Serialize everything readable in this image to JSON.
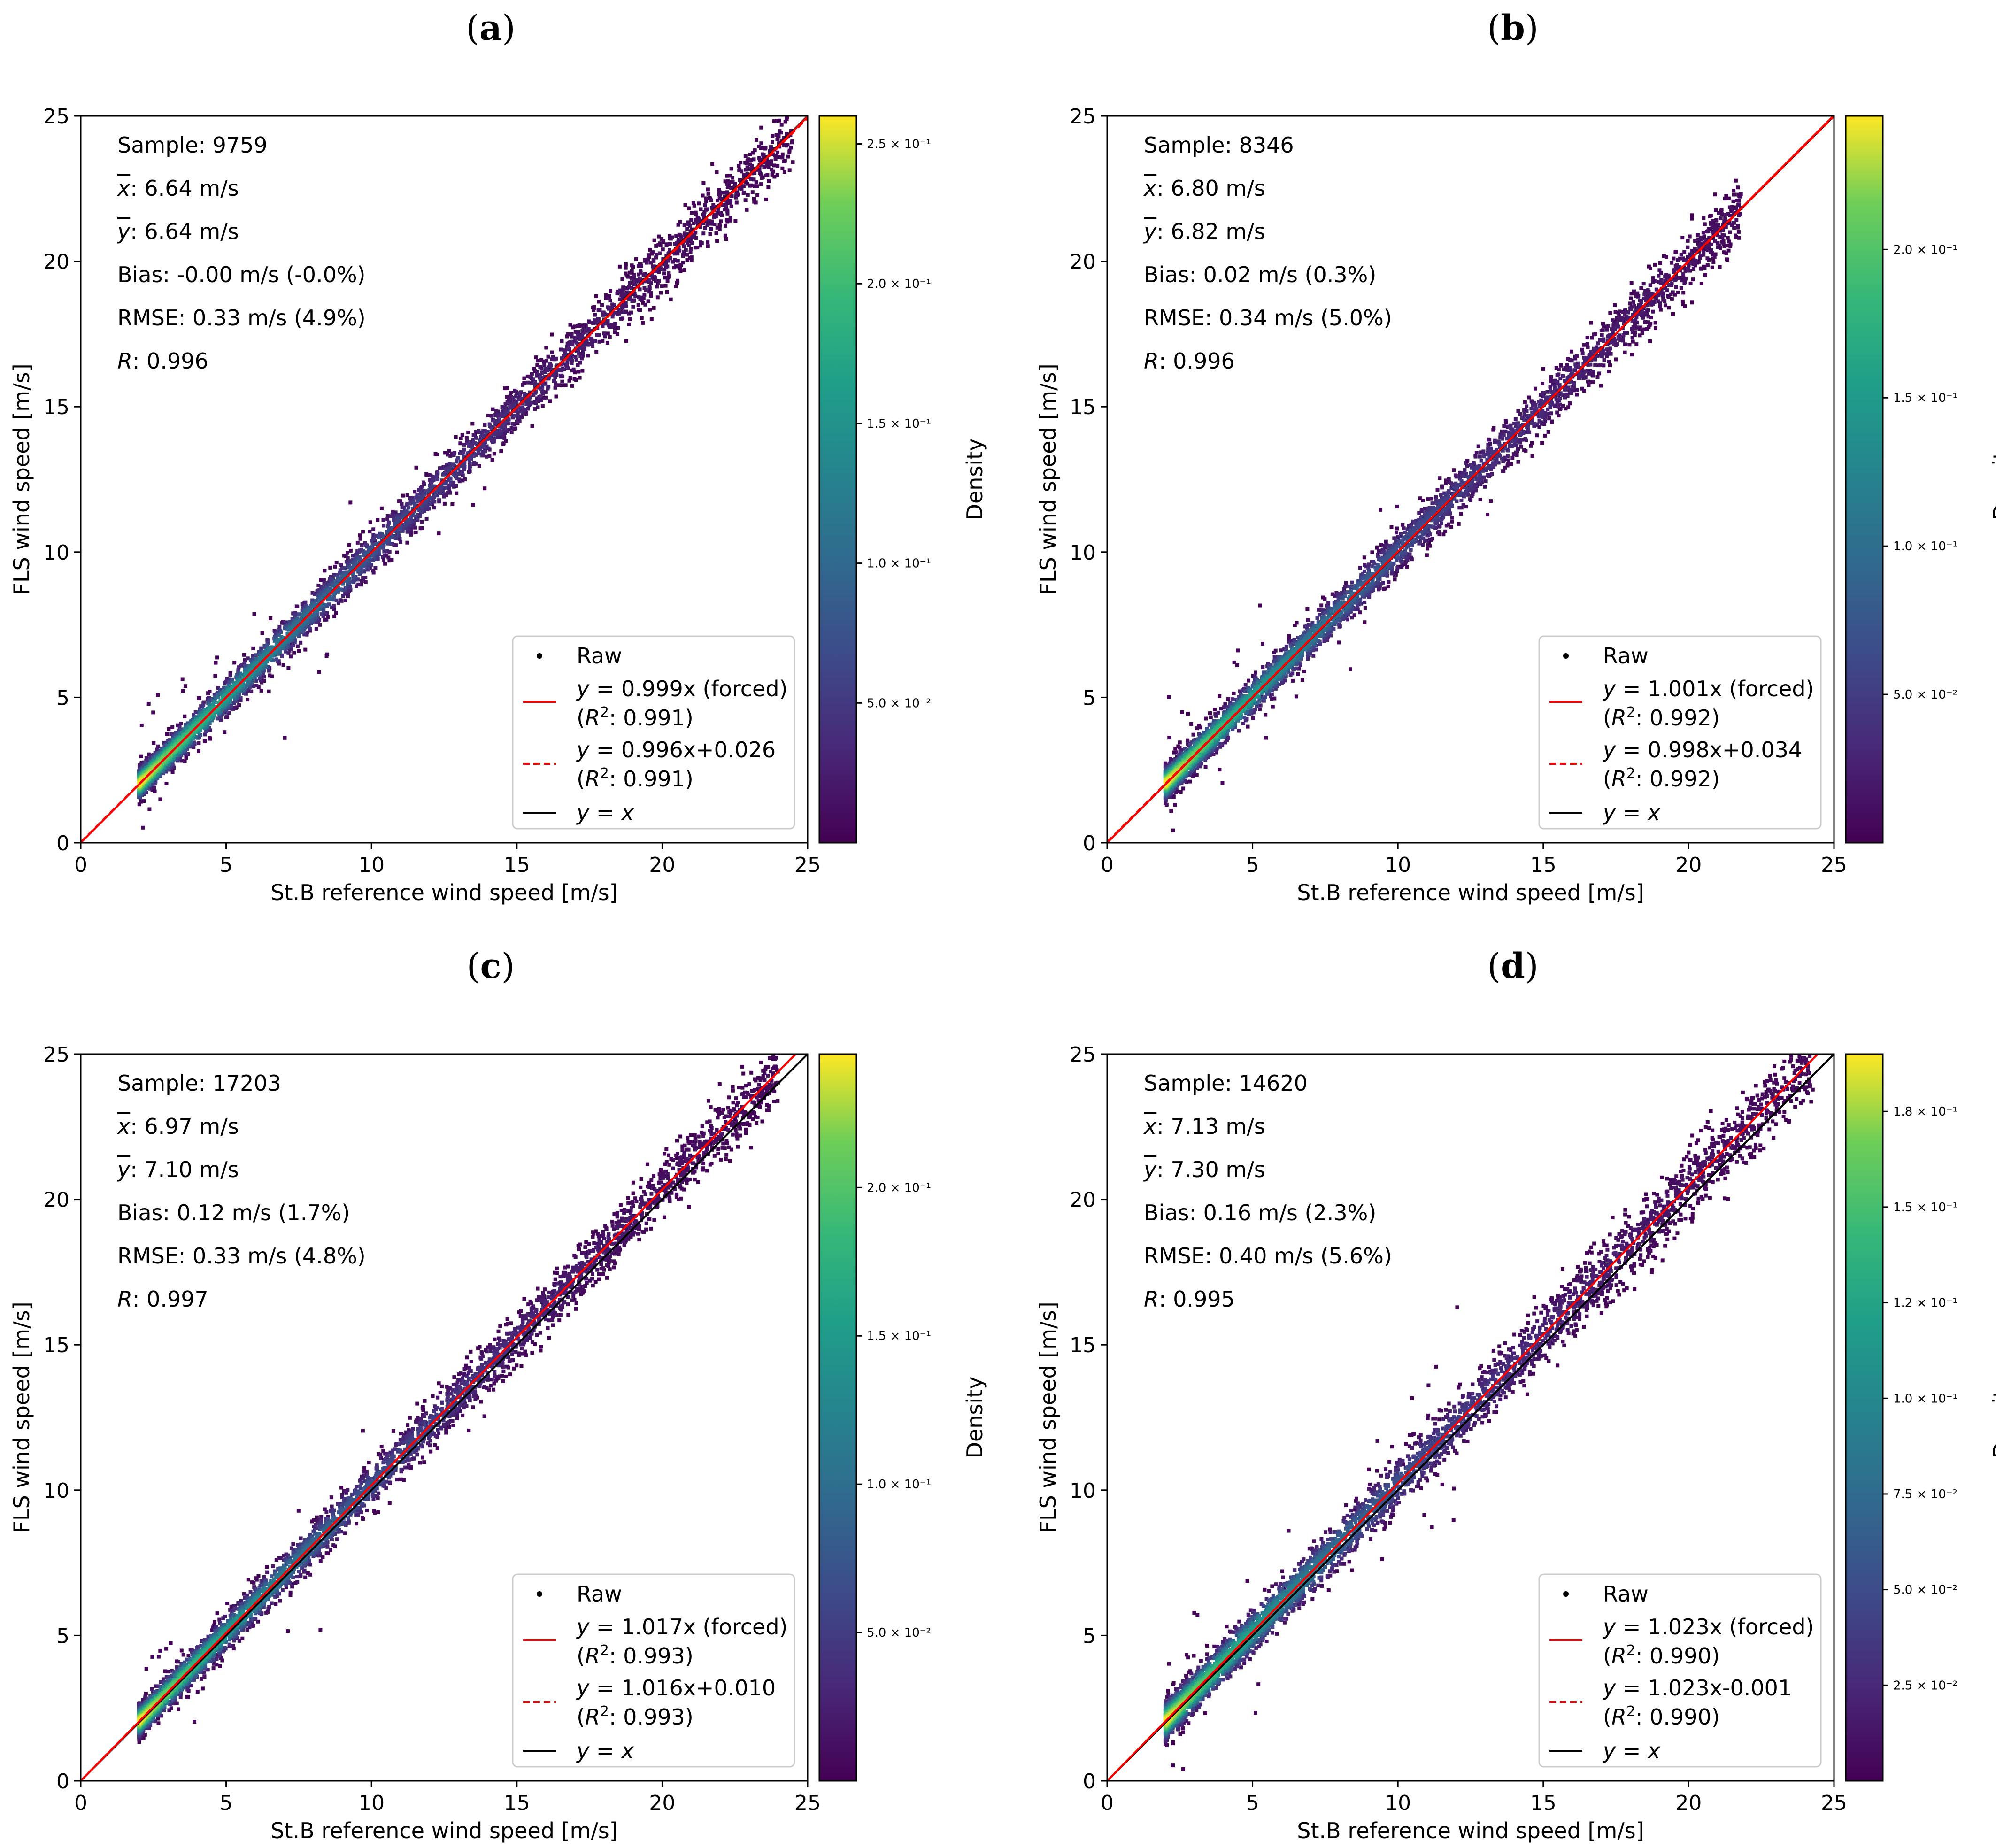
{
  "figure": {
    "panels": [
      "a",
      "b",
      "c",
      "d"
    ]
  },
  "common": {
    "x_label": "St.B reference wind speed [m/s]",
    "y_label": "FLS wind speed [m/s]",
    "colorbar_label": "Density",
    "legend_raw": "Raw",
    "legend_identity": "y = x",
    "stat_labels": {
      "sample": "Sample: ",
      "xmean": ": ",
      "ymean": ": ",
      "bias": "Bias: ",
      "rmse": "RMSE: ",
      "r": ": "
    }
  },
  "chart_data": [
    {
      "panel": "(a)",
      "type": "scatter",
      "title": "(a)",
      "xlabel": "St.B reference wind speed [m/s]",
      "ylabel": "FLS wind speed [m/s]",
      "xlim": [
        0,
        25
      ],
      "ylim": [
        0,
        25
      ],
      "xticks": [
        0,
        5,
        10,
        15,
        20,
        25
      ],
      "yticks": [
        0,
        5,
        10,
        15,
        20,
        25
      ],
      "stats": {
        "sample": "9759",
        "xmean": "6.64 m/s",
        "ymean": "6.64 m/s",
        "bias": "-0.00 m/s (-0.0%)",
        "rmse": "0.33 m/s (4.9%)",
        "r": "0.996"
      },
      "fit_forced": {
        "slope": 0.999,
        "intercept": 0,
        "label": "= 0.999x (forced)",
        "r2_label": ": 0.991)"
      },
      "fit_free": {
        "slope": 0.996,
        "intercept": 0.026,
        "label": "= 0.996x+0.026",
        "r2_label": ": 0.991)"
      },
      "data_range": [
        2,
        24.5
      ],
      "spread": 0.33,
      "colorbar": {
        "label": "Density",
        "vmin": 0.0,
        "vmax": 0.26,
        "ticks": [
          0.05,
          0.1,
          0.15,
          0.2,
          0.25
        ],
        "tick_labels": [
          "5.0 × 10⁻²",
          "1.0 × 10⁻¹",
          "1.5 × 10⁻¹",
          "2.0 × 10⁻¹",
          "2.5 × 10⁻¹"
        ]
      }
    },
    {
      "panel": "(b)",
      "type": "scatter",
      "title": "(b)",
      "xlabel": "St.B reference wind speed [m/s]",
      "ylabel": "FLS wind speed [m/s]",
      "xlim": [
        0,
        25
      ],
      "ylim": [
        0,
        25
      ],
      "xticks": [
        0,
        5,
        10,
        15,
        20,
        25
      ],
      "yticks": [
        0,
        5,
        10,
        15,
        20,
        25
      ],
      "stats": {
        "sample": "8346",
        "xmean": "6.80 m/s",
        "ymean": "6.82 m/s",
        "bias": "0.02 m/s (0.3%)",
        "rmse": "0.34 m/s (5.0%)",
        "r": "0.996"
      },
      "fit_forced": {
        "slope": 1.001,
        "intercept": 0,
        "label": "= 1.001x (forced)",
        "r2_label": ": 0.992)"
      },
      "fit_free": {
        "slope": 0.998,
        "intercept": 0.034,
        "label": "= 0.998x+0.034",
        "r2_label": ": 0.992)"
      },
      "data_range": [
        2,
        21.8
      ],
      "spread": 0.34,
      "colorbar": {
        "label": "Density",
        "vmin": 0.0,
        "vmax": 0.245,
        "ticks": [
          0.05,
          0.1,
          0.15,
          0.2
        ],
        "tick_labels": [
          "5.0 × 10⁻²",
          "1.0 × 10⁻¹",
          "1.5 × 10⁻¹",
          "2.0 × 10⁻¹"
        ]
      }
    },
    {
      "panel": "(c)",
      "type": "scatter",
      "title": "(c)",
      "xlabel": "St.B reference wind speed [m/s]",
      "ylabel": "FLS wind speed [m/s]",
      "xlim": [
        0,
        25
      ],
      "ylim": [
        0,
        25
      ],
      "xticks": [
        0,
        5,
        10,
        15,
        20,
        25
      ],
      "yticks": [
        0,
        5,
        10,
        15,
        20,
        25
      ],
      "stats": {
        "sample": "17203",
        "xmean": "6.97 m/s",
        "ymean": "7.10 m/s",
        "bias": "0.12 m/s (1.7%)",
        "rmse": "0.33 m/s (4.8%)",
        "r": "0.997"
      },
      "fit_forced": {
        "slope": 1.017,
        "intercept": 0,
        "label": "= 1.017x (forced)",
        "r2_label": ": 0.993)"
      },
      "fit_free": {
        "slope": 1.016,
        "intercept": 0.01,
        "label": "= 1.016x+0.010",
        "r2_label": ": 0.993)"
      },
      "data_range": [
        2,
        24
      ],
      "spread": 0.33,
      "colorbar": {
        "label": "Density",
        "vmin": 0.0,
        "vmax": 0.245,
        "ticks": [
          0.05,
          0.1,
          0.15,
          0.2
        ],
        "tick_labels": [
          "5.0 × 10⁻²",
          "1.0 × 10⁻¹",
          "1.5 × 10⁻¹",
          "2.0 × 10⁻¹"
        ]
      }
    },
    {
      "panel": "(d)",
      "type": "scatter",
      "title": "(d)",
      "xlabel": "St.B reference wind speed [m/s]",
      "ylabel": "FLS wind speed [m/s]",
      "xlim": [
        0,
        25
      ],
      "ylim": [
        0,
        25
      ],
      "xticks": [
        0,
        5,
        10,
        15,
        20,
        25
      ],
      "yticks": [
        0,
        5,
        10,
        15,
        20,
        25
      ],
      "stats": {
        "sample": "14620",
        "xmean": "7.13 m/s",
        "ymean": "7.30 m/s",
        "bias": "0.16 m/s (2.3%)",
        "rmse": "0.40 m/s (5.6%)",
        "r": "0.995"
      },
      "fit_forced": {
        "slope": 1.023,
        "intercept": 0,
        "label": "= 1.023x (forced)",
        "r2_label": ": 0.990)"
      },
      "fit_free": {
        "slope": 1.023,
        "intercept": -0.001,
        "label": "= 1.023x-0.001",
        "r2_label": ": 0.990)"
      },
      "data_range": [
        2,
        24.3
      ],
      "spread": 0.4,
      "colorbar": {
        "label": "Density",
        "vmin": 0.0,
        "vmax": 0.19,
        "ticks": [
          0.025,
          0.05,
          0.075,
          0.1,
          0.125,
          0.15,
          0.175
        ],
        "tick_labels": [
          "2.5 × 10⁻²",
          "5.0 × 10⁻²",
          "7.5 × 10⁻²",
          "1.0 × 10⁻¹",
          "1.2 × 10⁻¹",
          "1.5 × 10⁻¹",
          "1.8 × 10⁻¹"
        ]
      }
    }
  ]
}
